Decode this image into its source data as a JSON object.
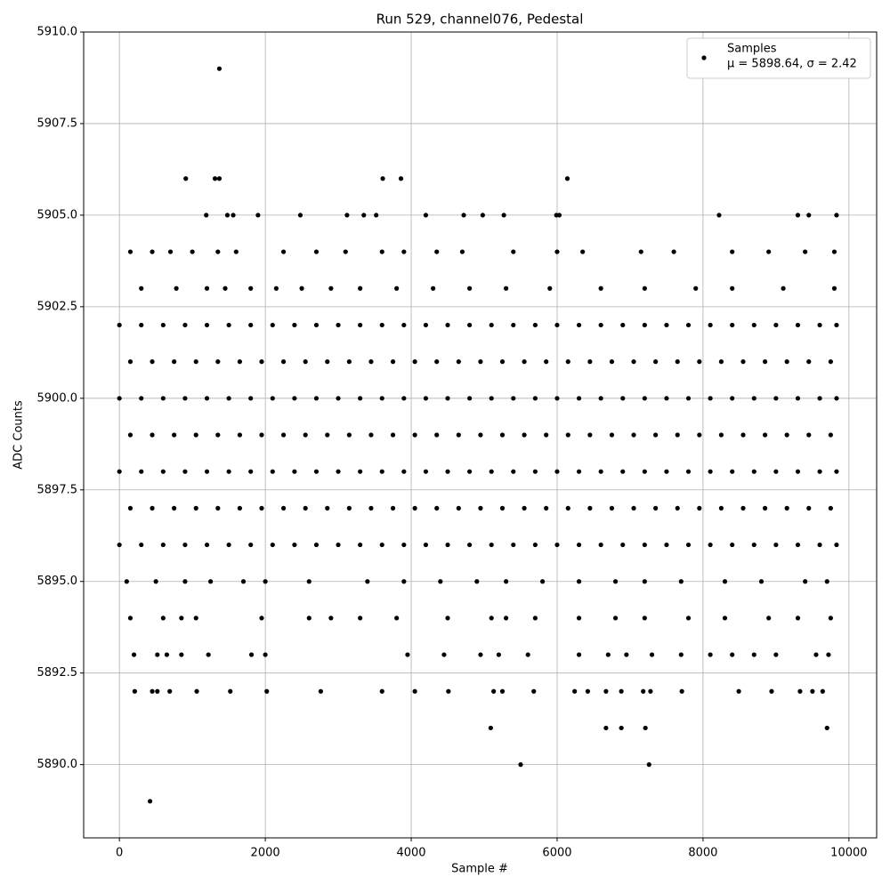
{
  "chart_data": {
    "type": "scatter",
    "title": "Run 529, channel076, Pedestal",
    "x_label": "Sample #",
    "y_label": "ADC Counts",
    "xlim": [
      -490,
      10380
    ],
    "ylim": [
      5888.0,
      5910.0
    ],
    "xticks": [
      0,
      2000,
      4000,
      6000,
      8000,
      10000
    ],
    "yticks": [
      {
        "value": 5890.0,
        "label": "5890.0"
      },
      {
        "value": 5892.5,
        "label": "5892.5"
      },
      {
        "value": 5895.0,
        "label": "5895.0"
      },
      {
        "value": 5897.5,
        "label": "5897.5"
      },
      {
        "value": 5900.0,
        "label": "5900.0"
      },
      {
        "value": 5902.5,
        "label": "5902.5"
      },
      {
        "value": 5905.0,
        "label": "5905.0"
      },
      {
        "value": 5907.5,
        "label": "5907.5"
      },
      {
        "value": 5910.0,
        "label": "5910.0"
      }
    ],
    "grid": true,
    "legend_position": "upper right",
    "legend_detail": "μ = 5898.64, σ = 2.42",
    "series": [
      {
        "name": "Samples",
        "color": "#000000",
        "x": [
          0,
          300,
          600,
          900,
          1200,
          1500,
          1800,
          2100,
          2400,
          2700,
          3000,
          3300,
          3600,
          3900,
          4200,
          4500,
          4800,
          5100,
          5400,
          5700,
          6000,
          6300,
          6600,
          6900,
          7200,
          7500,
          7800,
          8100,
          8400,
          8700,
          9000,
          9300,
          9600,
          9830,
          150,
          450,
          750,
          1050,
          1350,
          1650,
          1950,
          2250,
          2550,
          2850,
          3150,
          3450,
          3750,
          4050,
          4350,
          4650,
          4950,
          5250,
          5550,
          5850,
          6150,
          6450,
          6750,
          7050,
          7350,
          7650,
          7950,
          8250,
          8550,
          8850,
          9150,
          9450,
          9750,
          0,
          300,
          600,
          900,
          1200,
          1500,
          1800,
          2100,
          2400,
          2700,
          3000,
          3300,
          3600,
          3900,
          4200,
          4500,
          4800,
          5100,
          5400,
          5700,
          6000,
          6300,
          6600,
          6900,
          7200,
          7500,
          7800,
          8100,
          8400,
          8700,
          9000,
          9300,
          9600,
          9830,
          150,
          450,
          750,
          1050,
          1350,
          1650,
          1950,
          2250,
          2550,
          2850,
          3150,
          3450,
          3750,
          4050,
          4350,
          4650,
          4950,
          5250,
          5550,
          5850,
          6150,
          6450,
          6750,
          7050,
          7350,
          7650,
          7950,
          8250,
          8550,
          8850,
          9150,
          9450,
          9750,
          0,
          300,
          600,
          900,
          1200,
          1500,
          1800,
          2100,
          2400,
          2700,
          3000,
          3300,
          3600,
          3900,
          4200,
          4500,
          4800,
          5100,
          5400,
          5700,
          6000,
          6300,
          6600,
          6900,
          7200,
          7500,
          7800,
          8100,
          8400,
          8700,
          9000,
          9300,
          9600,
          9830,
          150,
          450,
          750,
          1050,
          1350,
          1650,
          1950,
          2250,
          2550,
          2850,
          3150,
          3450,
          3750,
          4050,
          4350,
          4650,
          4950,
          5250,
          5550,
          5850,
          6150,
          6450,
          6750,
          7050,
          7350,
          7650,
          7950,
          8250,
          8550,
          8850,
          9150,
          9450,
          9750,
          0,
          300,
          600,
          900,
          1200,
          1500,
          1800,
          2100,
          2400,
          2700,
          3000,
          3300,
          3600,
          3900,
          4200,
          4500,
          4800,
          5100,
          5400,
          5700,
          6000,
          6300,
          6600,
          6900,
          7200,
          7500,
          7800,
          8100,
          8400,
          8700,
          9000,
          9300,
          9600,
          9830,
          300,
          780,
          1200,
          1450,
          1800,
          2150,
          2500,
          2900,
          3300,
          3800,
          4300,
          4800,
          5300,
          5900,
          6600,
          7200,
          7900,
          8400,
          9100,
          9800,
          150,
          450,
          700,
          1000,
          1350,
          1600,
          2250,
          2700,
          3100,
          3600,
          3900,
          4350,
          4700,
          5400,
          6000,
          6350,
          7150,
          7600,
          8400,
          8900,
          9400,
          9800,
          100,
          500,
          900,
          1250,
          1700,
          2000,
          2600,
          3400,
          3900,
          4400,
          4900,
          5300,
          5800,
          6300,
          6800,
          7200,
          7700,
          8300,
          8800,
          9400,
          9700,
          150,
          600,
          850,
          1050,
          1950,
          2600,
          2900,
          3300,
          3800,
          4500,
          5100,
          5300,
          5700,
          6300,
          6800,
          7200,
          7800,
          8300,
          8900,
          9300,
          9750,
          200,
          520,
          650,
          850,
          1220,
          1810,
          2000,
          3950,
          4450,
          4950,
          5200,
          5600,
          6300,
          6700,
          6950,
          7300,
          7700,
          8100,
          8400,
          8700,
          9000,
          9550,
          9720,
          210,
          450,
          520,
          690,
          1060,
          1520,
          2020,
          2760,
          3600,
          4050,
          4510,
          5130,
          5250,
          5680,
          6240,
          6420,
          6670,
          6880,
          7180,
          7280,
          7710,
          8490,
          8940,
          9330,
          9500,
          9640,
          1190,
          1480,
          1560,
          1900,
          2480,
          3120,
          3350,
          3520,
          4200,
          4720,
          4980,
          5270,
          5990,
          6030,
          8220,
          9300,
          9450,
          9830,
          910,
          1310,
          1370,
          3610,
          3860,
          6140,
          1370,
          5090,
          6670,
          6880,
          7210,
          9700,
          5500,
          7260,
          420
        ],
        "values": [
          5902,
          5902,
          5902,
          5902,
          5902,
          5902,
          5902,
          5902,
          5902,
          5902,
          5902,
          5902,
          5902,
          5902,
          5902,
          5902,
          5902,
          5902,
          5902,
          5902,
          5902,
          5902,
          5902,
          5902,
          5902,
          5902,
          5902,
          5902,
          5902,
          5902,
          5902,
          5902,
          5902,
          5902,
          5901,
          5901,
          5901,
          5901,
          5901,
          5901,
          5901,
          5901,
          5901,
          5901,
          5901,
          5901,
          5901,
          5901,
          5901,
          5901,
          5901,
          5901,
          5901,
          5901,
          5901,
          5901,
          5901,
          5901,
          5901,
          5901,
          5901,
          5901,
          5901,
          5901,
          5901,
          5901,
          5901,
          5900,
          5900,
          5900,
          5900,
          5900,
          5900,
          5900,
          5900,
          5900,
          5900,
          5900,
          5900,
          5900,
          5900,
          5900,
          5900,
          5900,
          5900,
          5900,
          5900,
          5900,
          5900,
          5900,
          5900,
          5900,
          5900,
          5900,
          5900,
          5900,
          5900,
          5900,
          5900,
          5900,
          5900,
          5899,
          5899,
          5899,
          5899,
          5899,
          5899,
          5899,
          5899,
          5899,
          5899,
          5899,
          5899,
          5899,
          5899,
          5899,
          5899,
          5899,
          5899,
          5899,
          5899,
          5899,
          5899,
          5899,
          5899,
          5899,
          5899,
          5899,
          5899,
          5899,
          5899,
          5899,
          5899,
          5899,
          5898,
          5898,
          5898,
          5898,
          5898,
          5898,
          5898,
          5898,
          5898,
          5898,
          5898,
          5898,
          5898,
          5898,
          5898,
          5898,
          5898,
          5898,
          5898,
          5898,
          5898,
          5898,
          5898,
          5898,
          5898,
          5898,
          5898,
          5898,
          5898,
          5898,
          5898,
          5898,
          5898,
          5898,
          5897,
          5897,
          5897,
          5897,
          5897,
          5897,
          5897,
          5897,
          5897,
          5897,
          5897,
          5897,
          5897,
          5897,
          5897,
          5897,
          5897,
          5897,
          5897,
          5897,
          5897,
          5897,
          5897,
          5897,
          5897,
          5897,
          5897,
          5897,
          5897,
          5897,
          5897,
          5897,
          5897,
          5896,
          5896,
          5896,
          5896,
          5896,
          5896,
          5896,
          5896,
          5896,
          5896,
          5896,
          5896,
          5896,
          5896,
          5896,
          5896,
          5896,
          5896,
          5896,
          5896,
          5896,
          5896,
          5896,
          5896,
          5896,
          5896,
          5896,
          5896,
          5896,
          5896,
          5896,
          5896,
          5896,
          5896,
          5903,
          5903,
          5903,
          5903,
          5903,
          5903,
          5903,
          5903,
          5903,
          5903,
          5903,
          5903,
          5903,
          5903,
          5903,
          5903,
          5903,
          5903,
          5903,
          5903,
          5904,
          5904,
          5904,
          5904,
          5904,
          5904,
          5904,
          5904,
          5904,
          5904,
          5904,
          5904,
          5904,
          5904,
          5904,
          5904,
          5904,
          5904,
          5904,
          5904,
          5904,
          5904,
          5895,
          5895,
          5895,
          5895,
          5895,
          5895,
          5895,
          5895,
          5895,
          5895,
          5895,
          5895,
          5895,
          5895,
          5895,
          5895,
          5895,
          5895,
          5895,
          5895,
          5895,
          5894,
          5894,
          5894,
          5894,
          5894,
          5894,
          5894,
          5894,
          5894,
          5894,
          5894,
          5894,
          5894,
          5894,
          5894,
          5894,
          5894,
          5894,
          5894,
          5894,
          5894,
          5893,
          5893,
          5893,
          5893,
          5893,
          5893,
          5893,
          5893,
          5893,
          5893,
          5893,
          5893,
          5893,
          5893,
          5893,
          5893,
          5893,
          5893,
          5893,
          5893,
          5893,
          5893,
          5893,
          5892,
          5892,
          5892,
          5892,
          5892,
          5892,
          5892,
          5892,
          5892,
          5892,
          5892,
          5892,
          5892,
          5892,
          5892,
          5892,
          5892,
          5892,
          5892,
          5892,
          5892,
          5892,
          5892,
          5892,
          5892,
          5892,
          5905,
          5905,
          5905,
          5905,
          5905,
          5905,
          5905,
          5905,
          5905,
          5905,
          5905,
          5905,
          5905,
          5905,
          5905,
          5905,
          5905,
          5905,
          5906,
          5906,
          5906,
          5906,
          5906,
          5906,
          5909,
          5891,
          5891,
          5891,
          5891,
          5891,
          5890,
          5890,
          5889
        ]
      }
    ]
  }
}
